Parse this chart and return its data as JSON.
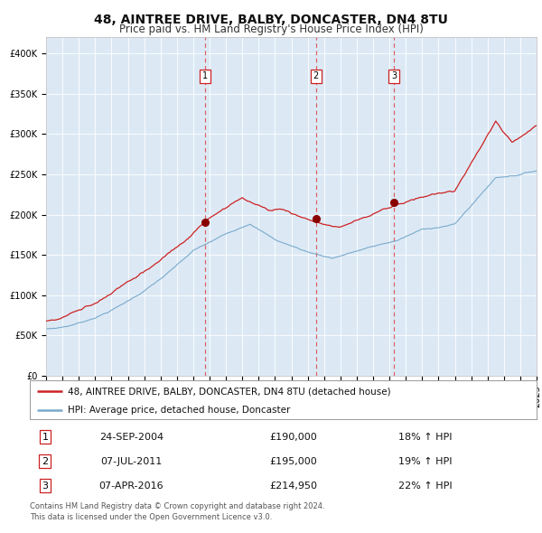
{
  "title": "48, AINTREE DRIVE, BALBY, DONCASTER, DN4 8TU",
  "subtitle": "Price paid vs. HM Land Registry's House Price Index (HPI)",
  "legend_line1": "48, AINTREE DRIVE, BALBY, DONCASTER, DN4 8TU (detached house)",
  "legend_line2": "HPI: Average price, detached house, Doncaster",
  "footer1": "Contains HM Land Registry data © Crown copyright and database right 2024.",
  "footer2": "This data is licensed under the Open Government Licence v3.0.",
  "rows": [
    [
      1,
      "24-SEP-2004",
      "£190,000",
      "18% ↑ HPI"
    ],
    [
      2,
      "07-JUL-2011",
      "£195,000",
      "19% ↑ HPI"
    ],
    [
      3,
      "07-APR-2016",
      "£214,950",
      "22% ↑ HPI"
    ]
  ],
  "trans_times": [
    2004.729,
    2011.504,
    2016.271
  ],
  "trans_prices": [
    190000,
    195000,
    214950
  ],
  "hpi_color": "#7aaacc",
  "price_color": "#cc2222",
  "dot_color": "#880000",
  "plot_bg": "#dce9f5",
  "grid_color": "#ffffff",
  "vline_color": "#dd4444",
  "ylim": [
    0,
    420000
  ],
  "xlim": [
    1995,
    2025
  ],
  "yticks": [
    0,
    50000,
    100000,
    150000,
    200000,
    250000,
    300000,
    350000,
    400000
  ],
  "title_fontsize": 10,
  "subtitle_fontsize": 8.5,
  "tick_fontsize": 7,
  "legend_fontsize": 7.5,
  "table_fontsize": 8,
  "footer_fontsize": 6.0
}
